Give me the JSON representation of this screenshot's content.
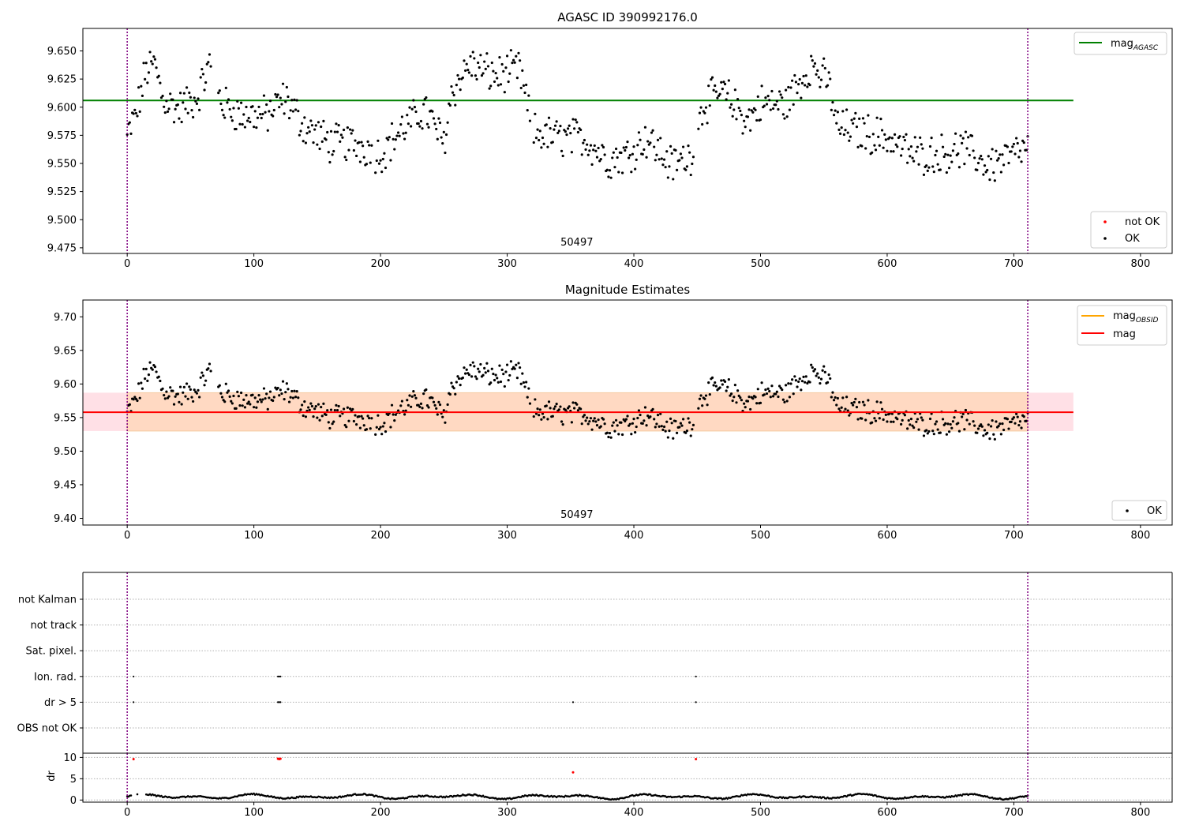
{
  "colors": {
    "agasc_line": "#008000",
    "obsid_line": "#ffa500",
    "mag_line": "#ff0000",
    "band_outer": "#ffe0e6",
    "band_inner": "#ffd9c2",
    "ok_point": "#000000",
    "not_ok_point": "#ff0000",
    "obs_marker": "#800080",
    "grid": "#b0b0b0"
  },
  "chart_data": [
    {
      "type": "scatter",
      "title": "AGASC ID 390992176.0",
      "xlim": [
        -35,
        825
      ],
      "ylim": [
        9.47,
        9.67
      ],
      "xticks": [
        0,
        100,
        200,
        300,
        400,
        500,
        600,
        700,
        800
      ],
      "yticks": [
        9.475,
        9.5,
        9.525,
        9.55,
        9.575,
        9.6,
        9.625,
        9.65
      ],
      "ytick_labels": [
        "9.475",
        "9.500",
        "9.525",
        "9.550",
        "9.575",
        "9.600",
        "9.625",
        "9.650"
      ],
      "reference_line": {
        "label": "mag",
        "label_sub": "AGASC",
        "y": 9.606,
        "x": [
          -35,
          747
        ]
      },
      "obs_boundaries": [
        0,
        711
      ],
      "obs_label": {
        "text": "50497",
        "x": 355
      },
      "legend_lines": [
        {
          "label": "mag",
          "sub": "AGASC"
        }
      ],
      "legend_points": [
        {
          "label": "not OK"
        },
        {
          "label": "OK"
        }
      ],
      "legend_lines_placement": "upper-right",
      "legend_points_placement": "lower-right",
      "series_points": "OK points: magnitude vs sample index 0-711, values 9.50-9.64"
    },
    {
      "type": "scatter",
      "title": "Magnitude Estimates",
      "xlim": [
        -35,
        825
      ],
      "ylim": [
        9.39,
        9.725
      ],
      "xticks": [
        0,
        100,
        200,
        300,
        400,
        500,
        600,
        700,
        800
      ],
      "yticks": [
        9.4,
        9.45,
        9.5,
        9.55,
        9.6,
        9.65,
        9.7
      ],
      "ytick_labels": [
        "9.40",
        "9.45",
        "9.50",
        "9.55",
        "9.60",
        "9.65",
        "9.70"
      ],
      "mag_line": {
        "label": "mag",
        "y": 9.558,
        "band": [
          9.53,
          9.587
        ],
        "x": [
          -35,
          747
        ]
      },
      "obsid_line": {
        "label": "mag",
        "label_sub": "OBSID"
      },
      "obs_boundaries": [
        0,
        711
      ],
      "obs_label": {
        "text": "50497",
        "x": 355
      },
      "legend_lines": [
        {
          "label": "mag",
          "sub": "OBSID"
        },
        {
          "label": "mag",
          "sub": ""
        }
      ],
      "legend_points": [
        {
          "label": "OK"
        }
      ],
      "legend_lines_placement": "upper-right",
      "legend_points_placement": "lower-right"
    },
    {
      "type": "scatter",
      "title": "",
      "categories": [
        "not Kalman",
        "not track",
        "Sat. pixel.",
        "Ion. rad.",
        "dr > 5",
        "OBS not OK"
      ],
      "flag_points": [
        {
          "category": "Ion. rad.",
          "x": [
            5,
            119,
            120,
            121,
            449
          ]
        },
        {
          "category": "dr > 5",
          "x": [
            5,
            119,
            120,
            121,
            352,
            449
          ]
        }
      ],
      "obs_boundaries": [
        0,
        711
      ]
    },
    {
      "type": "scatter",
      "title": "",
      "ylabel": "dr",
      "xlim": [
        -35,
        825
      ],
      "ylim": [
        -0.5,
        11
      ],
      "yticks": [
        0,
        5,
        10
      ],
      "xticks": [
        0,
        100,
        200,
        300,
        400,
        500,
        600,
        700,
        800
      ],
      "outliers": [
        {
          "x": 5,
          "y": 9.6
        },
        {
          "x": 119,
          "y": 9.7
        },
        {
          "x": 120,
          "y": 9.6
        },
        {
          "x": 121,
          "y": 9.7
        },
        {
          "x": 352,
          "y": 6.5
        },
        {
          "x": 449,
          "y": 9.6
        }
      ],
      "obs_boundaries": [
        0,
        711
      ]
    }
  ]
}
